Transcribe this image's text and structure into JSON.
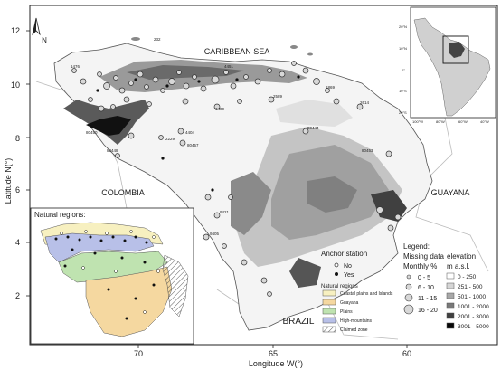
{
  "axes": {
    "ylabel": "Latitude N(°)",
    "xlabel": "Longitude W(°)",
    "yticks": [
      "12",
      "10",
      "8",
      "6",
      "4",
      "2"
    ],
    "xticks": [
      "70",
      "65",
      "60"
    ]
  },
  "labels": {
    "north": "N",
    "caribbean": "CARIBBEAN SEA",
    "colombia": "COLOMBIA",
    "guayana": "GUAYANA",
    "brazil": "BRAZIL"
  },
  "inset": {
    "lat_labels": [
      "20°N",
      "10°N",
      "0°",
      "10°S",
      "20°S"
    ],
    "lon_labels": [
      "100°W",
      "80°W",
      "60°W",
      "40°W"
    ]
  },
  "natural_regions": {
    "title": "Natural regions:",
    "heading": "Natural regions",
    "items": [
      {
        "label": "Coastal plains and Islands",
        "color": "#f7f0c0"
      },
      {
        "label": "Guayana",
        "color": "#f5d8a0"
      },
      {
        "label": "Plains",
        "color": "#bfe3b0"
      },
      {
        "label": "High-mountains",
        "color": "#b8c0e8"
      },
      {
        "label": "Claimed zone",
        "color": "#ffffff"
      }
    ]
  },
  "anchor": {
    "title": "Anchor station",
    "items": [
      "No",
      "Yes"
    ]
  },
  "missing": {
    "title1": "Legend:",
    "title2": "Missing data",
    "title3": "Monthly %",
    "items": [
      "0 - 5",
      "6 - 10",
      "11 - 15",
      "16 - 20"
    ]
  },
  "elevation": {
    "title1": "elevation",
    "title2": "m a.s.l.",
    "items": [
      {
        "label": "0 - 250",
        "color": "#ffffff"
      },
      {
        "label": "251 - 500",
        "color": "#d6d6d6"
      },
      {
        "label": "501 - 1000",
        "color": "#a8a8a8"
      },
      {
        "label": "1001 - 2000",
        "color": "#787878"
      },
      {
        "label": "2001 - 3000",
        "color": "#404040"
      },
      {
        "label": "3001 - 5000",
        "color": "#080808"
      }
    ]
  },
  "station_codes": [
    "232",
    "1476",
    "4451",
    "3400",
    "4404",
    "2229",
    "80457",
    "80448",
    "80453",
    "80444",
    "2614",
    "2589",
    "9421",
    "9405",
    "1869",
    "80450"
  ]
}
